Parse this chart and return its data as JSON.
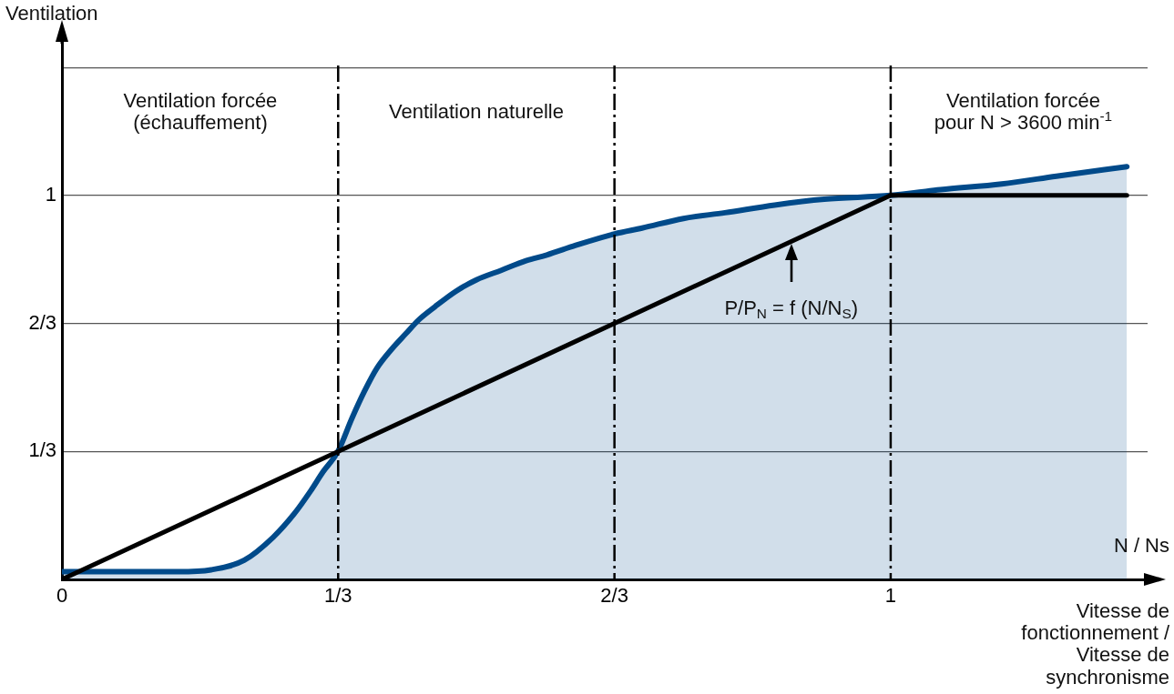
{
  "chart_data": {
    "type": "line",
    "ylabel": "Ventilation",
    "xlabel": "Vitesse de\nfonctionnement /\nVitesse de\nsynchronisme",
    "annotations": [
      "Ventilation forcée\n(échauffement)",
      "Ventilation naturelle",
      "Ventilation forcée\npour N > 3600 min$^{-1}$",
      "P/P$_{N}$ = f (N/N$_{S}$)",
      "N / Ns"
    ],
    "series": [
      {
        "type": "area",
        "color": "#004a8a",
        "x": [
          0,
          0.05,
          0.1,
          0.14,
          0.18,
          0.22,
          0.255,
          0.28,
          0.3,
          0.315,
          0.333,
          0.35,
          0.365,
          0.38,
          0.398,
          0.415,
          0.43,
          0.45,
          0.475,
          0.5,
          0.53,
          0.56,
          0.585,
          0.62,
          0.667,
          0.7,
          0.75,
          0.8,
          0.86,
          0.92,
          1,
          1.06,
          1.134,
          1.2,
          1.285
        ],
        "values": [
          0.02,
          0.02,
          0.02,
          0.02,
          0.025,
          0.05,
          0.11,
          0.17,
          0.23,
          0.28,
          0.333,
          0.42,
          0.49,
          0.55,
          0.6,
          0.64,
          0.675,
          0.71,
          0.75,
          0.78,
          0.805,
          0.83,
          0.845,
          0.87,
          0.9,
          0.915,
          0.94,
          0.955,
          0.975,
          0.99,
          1,
          1.015,
          1.03,
          1.05,
          1.075
        ]
      },
      {
        "type": "line",
        "color": "#000000",
        "x": [
          0,
          0.333,
          1,
          1.285
        ],
        "values": [
          0,
          0.333,
          1,
          1
        ]
      }
    ],
    "xlim": [
      0,
      1.31
    ],
    "ylim": [
      0,
      1.4
    ],
    "xticks": [
      0,
      {
        "value": 0.3333,
        "label": "1/3"
      },
      {
        "value": 0.6667,
        "label": "2/3"
      },
      1
    ],
    "yticks": [
      {
        "value": 0.3333,
        "label": "1/3"
      },
      {
        "value": 0.6667,
        "label": "2/3"
      },
      1,
      {
        "value": 1.3333,
        "label": null
      }
    ],
    "grid": "y",
    "legend": false,
    "marker": "none",
    "line_style": "solid",
    "ref_lines": [
      {
        "axis": "x",
        "value": 0.3333,
        "color": "#000000",
        "line_style": "dashed"
      },
      {
        "axis": "x",
        "value": 0.6667,
        "color": "#000000",
        "line_style": "dashed"
      },
      {
        "axis": "x",
        "value": 1,
        "color": "#000000",
        "line_style": "dashed"
      }
    ]
  }
}
